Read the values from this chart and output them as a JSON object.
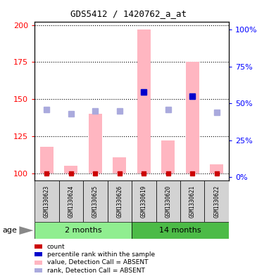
{
  "title": "GDS5412 / 1420762_a_at",
  "samples": [
    "GSM1330623",
    "GSM1330624",
    "GSM1330625",
    "GSM1330626",
    "GSM1330619",
    "GSM1330620",
    "GSM1330621",
    "GSM1330622"
  ],
  "group_labels": [
    "2 months",
    "14 months"
  ],
  "group_color_1": "#90EE90",
  "group_color_2": "#4CBB47",
  "bar_values": [
    118,
    105,
    140,
    111,
    197,
    122,
    175,
    106
  ],
  "rank_values": [
    143,
    140,
    142,
    142,
    155,
    143,
    152,
    141
  ],
  "pct_rank_left": [
    null,
    null,
    null,
    null,
    155,
    null,
    152,
    null
  ],
  "ylim_left": [
    95,
    202
  ],
  "ylim_right": [
    -2.5,
    105
  ],
  "yticks_left": [
    100,
    125,
    150,
    175,
    200
  ],
  "yticks_right": [
    0,
    25,
    50,
    75,
    100
  ],
  "bar_color": "#FFB6C1",
  "rank_color": "#AAAADD",
  "count_color": "#CC0000",
  "pct_color": "#0000CC",
  "bar_base": 100,
  "legend_labels": [
    "count",
    "percentile rank within the sample",
    "value, Detection Call = ABSENT",
    "rank, Detection Call = ABSENT"
  ],
  "legend_colors": [
    "#CC0000",
    "#0000CC",
    "#FFB6C1",
    "#AAAADD"
  ],
  "age_label": "age"
}
